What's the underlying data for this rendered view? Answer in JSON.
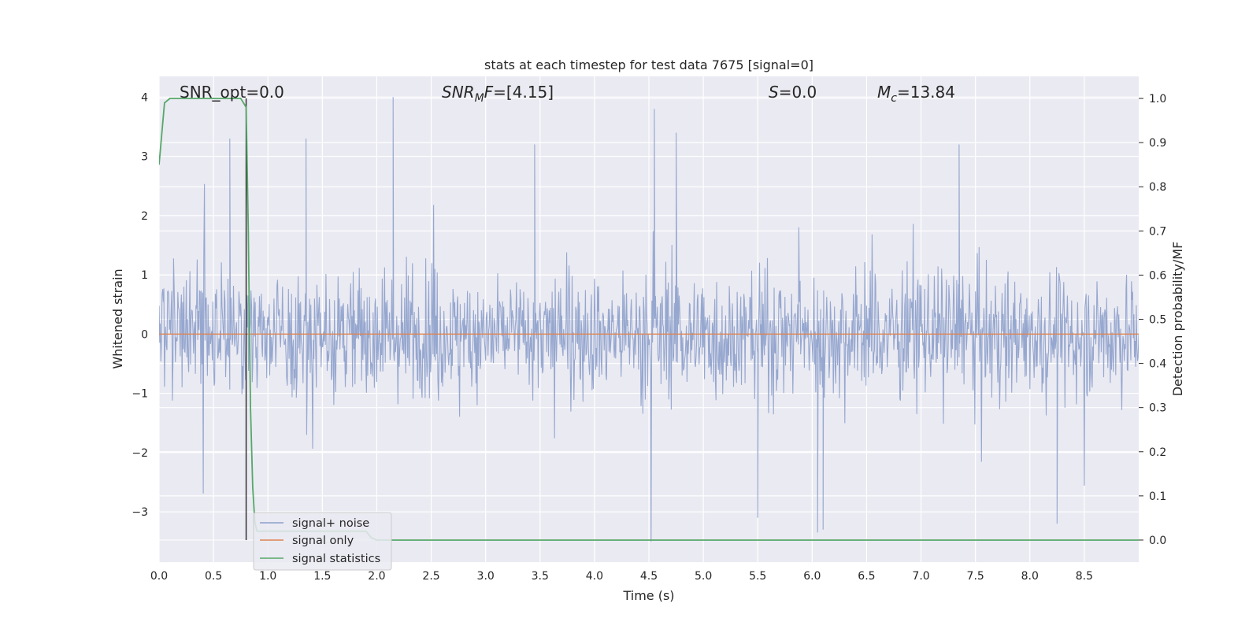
{
  "chart_data": {
    "type": "line",
    "title": "stats at each timestep for test data 7675 [signal=0]",
    "xlabel": "Time (s)",
    "ylabel": "Whitened strain",
    "y2label": "Detection probability/MF",
    "xlim": [
      0.0,
      9.0
    ],
    "ylim": [
      -3.85,
      4.35
    ],
    "y2lim": [
      -0.05,
      1.05
    ],
    "xticks": [
      "0.0",
      "0.5",
      "1.0",
      "1.5",
      "2.0",
      "2.5",
      "3.0",
      "3.5",
      "4.0",
      "4.5",
      "5.0",
      "5.5",
      "6.0",
      "6.5",
      "7.0",
      "7.5",
      "8.0",
      "8.5"
    ],
    "yticks": [
      "4",
      "3",
      "2",
      "1",
      "0",
      "−1",
      "−2",
      "−3"
    ],
    "y2ticks": [
      "1.0",
      "0.9",
      "0.8",
      "0.7",
      "0.6",
      "0.5",
      "0.4",
      "0.3",
      "0.2",
      "0.1",
      "0.0"
    ],
    "grid": true,
    "legend_position": "lower-left",
    "annotations": {
      "snr_opt": "SNR_opt=0.0",
      "snr_mf_italic": "SNR",
      "snr_mf_sub": "M",
      "snr_mf_f": "F",
      "snr_mf_value": "=[4.15]",
      "s_italic": "S",
      "s_value": "=0.0",
      "mc_italic": "M",
      "mc_sub": "c",
      "mc_value": "=13.84"
    },
    "vertical_marker_x": 0.8,
    "series": [
      {
        "name": "signal+ noise",
        "color": "#8da0cb",
        "description_values": {
          "typical_range": [
            -1.5,
            1.5
          ],
          "max": 4.0,
          "min": -3.5,
          "notable_peaks": [
            [
              0.65,
              3.3
            ],
            [
              1.35,
              3.3
            ],
            [
              2.15,
              4.0
            ],
            [
              4.55,
              3.8
            ],
            [
              4.75,
              3.4
            ],
            [
              3.45,
              3.2
            ],
            [
              7.35,
              3.2
            ]
          ],
          "notable_troughs": [
            [
              4.52,
              -3.5
            ],
            [
              6.05,
              -3.35
            ],
            [
              6.1,
              -3.3
            ],
            [
              5.5,
              -3.1
            ],
            [
              8.25,
              -3.2
            ]
          ]
        }
      },
      {
        "name": "signal only",
        "color": "#dd8452",
        "x": [
          0.0,
          9.0
        ],
        "y": [
          0.0,
          0.0
        ]
      },
      {
        "name": "signal statistics",
        "color": "#55a868",
        "axis": "right",
        "x": [
          0.0,
          0.05,
          0.1,
          0.15,
          0.2,
          0.3,
          0.4,
          0.5,
          0.6,
          0.7,
          0.75,
          0.8,
          0.82,
          0.84,
          0.86,
          0.88,
          0.9,
          1.0,
          1.5,
          1.9,
          1.95,
          2.0,
          9.0
        ],
        "y": [
          0.85,
          0.99,
          1.0,
          1.0,
          1.0,
          1.0,
          1.0,
          1.0,
          1.0,
          1.0,
          1.0,
          0.98,
          0.7,
          0.3,
          0.12,
          0.04,
          0.02,
          0.02,
          0.02,
          0.02,
          0.005,
          0.0,
          0.0
        ]
      }
    ]
  }
}
